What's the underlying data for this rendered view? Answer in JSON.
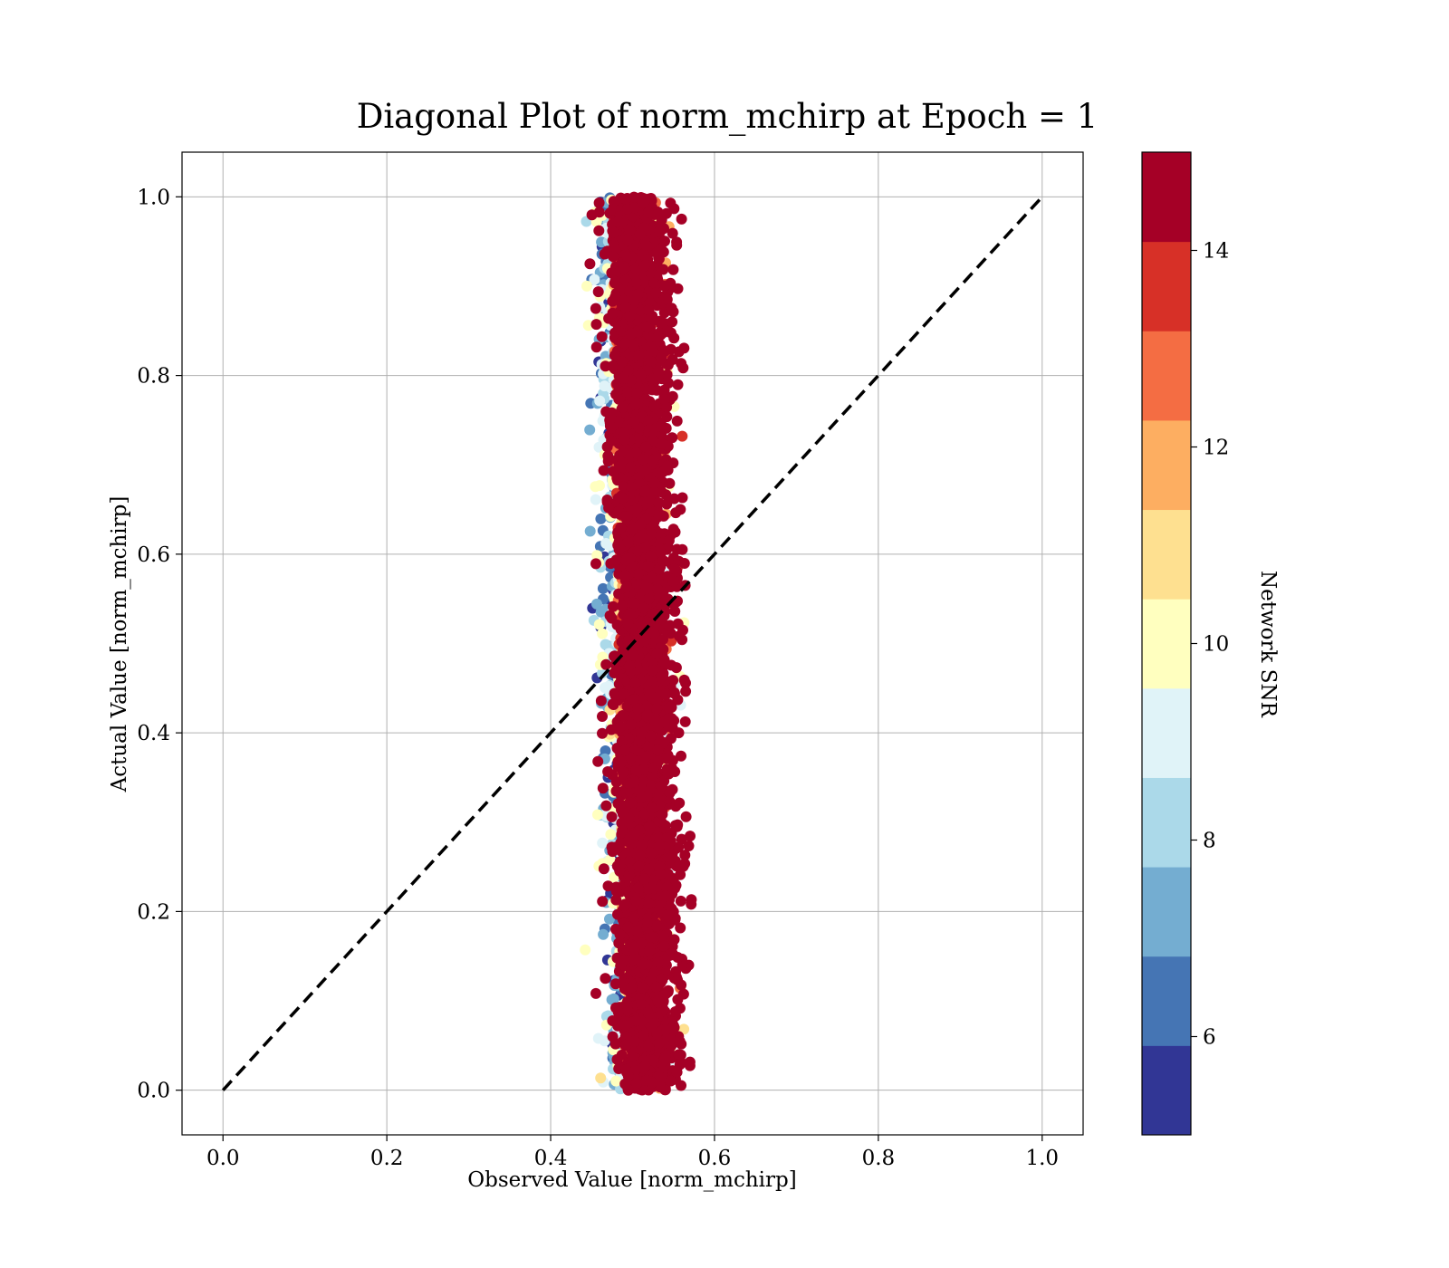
{
  "chart_data": {
    "type": "scatter",
    "title": "Diagonal Plot of norm_mchirp at Epoch = 1",
    "xlabel": "Observed Value [norm_mchirp]",
    "ylabel": "Actual Value [norm_mchirp]",
    "xlim": [
      -0.05,
      1.05
    ],
    "ylim": [
      -0.05,
      1.05
    ],
    "x_ticks": [
      "0.0",
      "0.2",
      "0.4",
      "0.6",
      "0.8",
      "1.0"
    ],
    "y_ticks": [
      "0.0",
      "0.2",
      "0.4",
      "0.6",
      "0.8",
      "1.0"
    ],
    "grid": true,
    "reference_line": {
      "style": "dashed",
      "color": "#000000",
      "from": [
        0,
        0
      ],
      "to": [
        1,
        1
      ]
    },
    "colorbar": {
      "label": "Network SNR",
      "range": [
        5,
        15
      ],
      "ticks": [
        "6",
        "8",
        "10",
        "12",
        "14"
      ],
      "colors": [
        "#313695",
        "#4575b4",
        "#74add1",
        "#abd9e9",
        "#e0f3f8",
        "#ffffbf",
        "#fee090",
        "#fdae61",
        "#f46d43",
        "#d73027",
        "#a50026"
      ]
    },
    "points_summary": {
      "description_source": "dense vertical band of points",
      "x_center_at_y0": 0.515,
      "x_center_at_y1": 0.5,
      "x_spread": 0.045,
      "y_range": [
        0.0,
        1.0
      ],
      "dominant_snr": 15
    }
  }
}
